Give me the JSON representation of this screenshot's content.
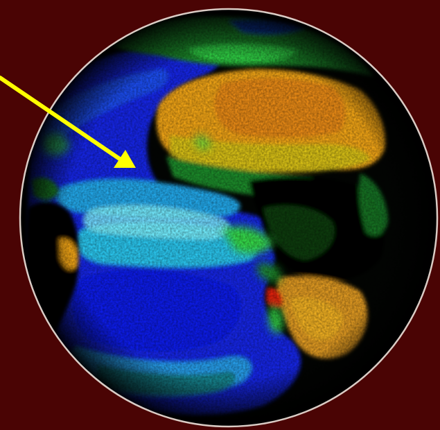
{
  "scene": {
    "subject": "globe-false-color-map",
    "background_color": "#4a0404",
    "rim_color": "#f4f0e8",
    "arrow_color": "#ffff00",
    "palette": {
      "ocean_deep": "#0d1ee8",
      "ocean_mid": "#1e4ef0",
      "ocean_light": "#29c8ee",
      "ocean_pale": "#7ff2ff",
      "vegetation": "#1a8a2a",
      "vegetation_bright": "#35d84a",
      "desert": "#f0a418",
      "desert_deep": "#e87a12",
      "savanna": "#d8c018",
      "dark_forest": "#030503",
      "hot_spot": "#e02010"
    }
  }
}
